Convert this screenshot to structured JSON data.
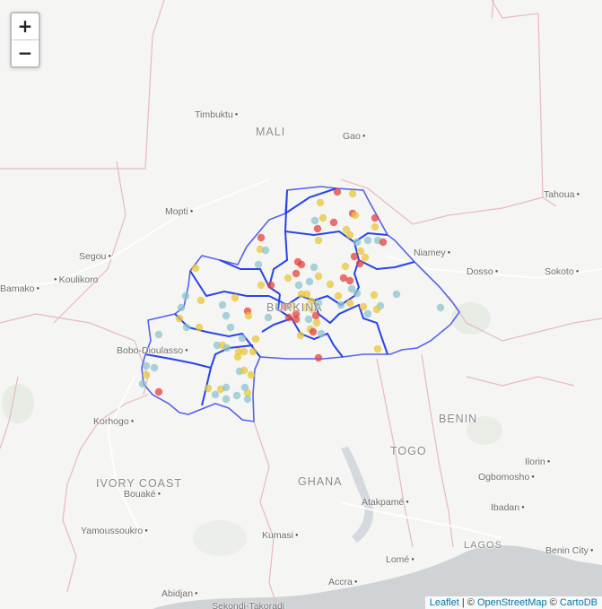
{
  "controls": {
    "zoom_in": "+",
    "zoom_out": "−"
  },
  "countries": {
    "mali": "MALI",
    "benin": "BENIN",
    "togo": "TOGO",
    "ghana": "GHANA",
    "ivory_coast": "IVORY COAST",
    "lagos": "LAGOS",
    "burkina": "BURKINA"
  },
  "cities": {
    "timbuktu": "Timbuktu",
    "gao": "Gao",
    "tahoua": "Tahoua",
    "mopti": "Mopti",
    "niamey": "Niamey",
    "segou": "Segou",
    "dosso": "Dosso",
    "sokoto": "Sokoto",
    "bamako": "Bamako",
    "koulikoro": "Koulikoro",
    "bobo": "Bobo-Dioulasso",
    "korhogo": "Korhogo",
    "ilorin": "Ilorin",
    "ogbomosho": "Ogbomosho",
    "bouake": "Bouaké",
    "atakpame": "Atakpamé",
    "ibadan": "Ibadan",
    "yamoussoukro": "Yamoussoukro",
    "kumasi": "Kumasi",
    "benin_city": "Benin City",
    "lome": "Lomé",
    "accra": "Accra",
    "abidjan": "Abidjan",
    "sekondi": "Sekondi-Takoradi"
  },
  "attribution": {
    "leaflet": "Leaflet",
    "sep1": " | © ",
    "osm": "OpenStreetMap",
    "sep2": " © ",
    "carto": "CartoDB"
  },
  "marker_colors": {
    "red": "#e3423c",
    "yellow": "#e8c53a",
    "teal": "#8cc3cf"
  }
}
